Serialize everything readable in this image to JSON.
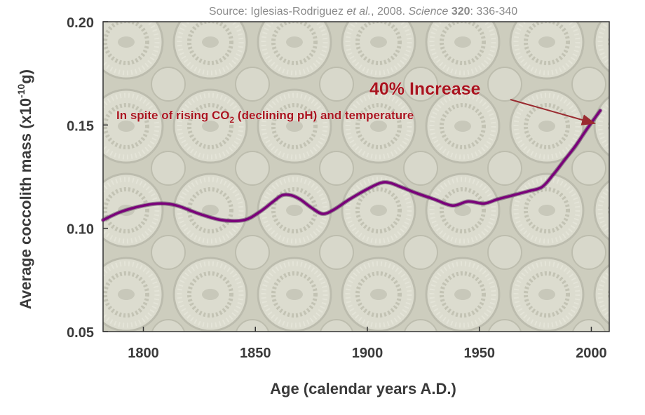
{
  "chart_data": {
    "type": "line",
    "source": {
      "prefix": "Source: Iglesias-Rodriguez ",
      "etal": "et al.",
      "mid": ", 2008. ",
      "journal": "Science",
      "space": " ",
      "volume": "320",
      "pages": ": 336-340"
    },
    "xlabel": "Age (calendar years A.D.)",
    "ylabel": {
      "base": "Average coccolith mass (x10",
      "exp": "-10",
      "unit": "g)"
    },
    "xlim": [
      1782,
      2008
    ],
    "ylim": [
      0.05,
      0.2
    ],
    "xticks": [
      1800,
      1850,
      1900,
      1950,
      2000
    ],
    "yticks": [
      "0.05",
      "0.10",
      "0.15",
      "0.20"
    ],
    "series": [
      {
        "color": "#7a007a",
        "x": [
          1782,
          1790,
          1800,
          1808,
          1815,
          1825,
          1835,
          1845,
          1852,
          1858,
          1862,
          1866,
          1870,
          1875,
          1880,
          1885,
          1892,
          1900,
          1906,
          1910,
          1915,
          1922,
          1930,
          1938,
          1945,
          1952,
          1958,
          1965,
          1972,
          1978,
          1983,
          1988,
          1993,
          1998,
          2004
        ],
        "y": [
          0.104,
          0.108,
          0.111,
          0.112,
          0.111,
          0.107,
          0.104,
          0.104,
          0.108,
          0.113,
          0.116,
          0.116,
          0.114,
          0.11,
          0.107,
          0.109,
          0.114,
          0.119,
          0.122,
          0.122,
          0.12,
          0.117,
          0.114,
          0.111,
          0.113,
          0.112,
          0.114,
          0.116,
          0.118,
          0.12,
          0.126,
          0.133,
          0.14,
          0.148,
          0.157
        ]
      }
    ],
    "annotations": {
      "increase": "40% Increase",
      "spite_pre": "In spite of rising CO",
      "spite_sub": "2",
      "spite_post": " (declining pH) and temperature"
    },
    "colors": {
      "annotation": "#a8141e",
      "line": "#7a007a",
      "background": "#cfcfc0"
    }
  }
}
